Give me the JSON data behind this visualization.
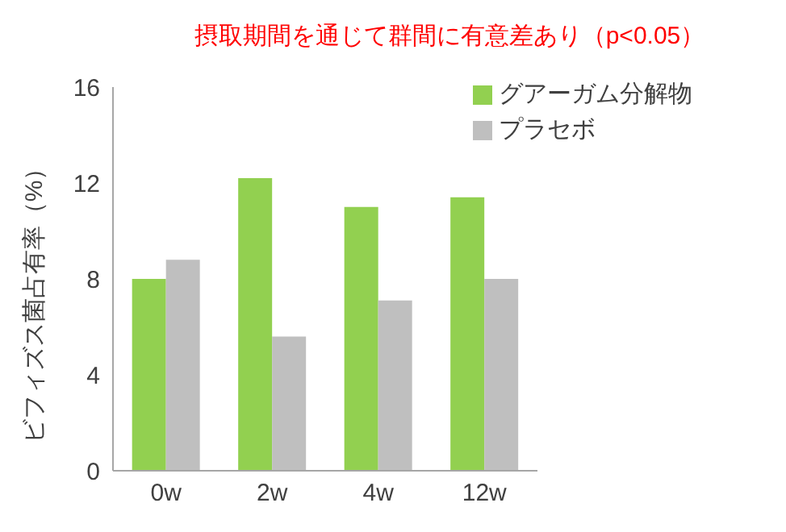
{
  "chart_data": {
    "type": "bar",
    "title": "摂取期間を通じて群間に有意差あり（p<0.05）",
    "ylabel": "ビフィズス菌占有率（%）",
    "categories": [
      "0w",
      "2w",
      "4w",
      "12w"
    ],
    "series": [
      {
        "name": "グアーガム分解物",
        "color": "#92d050",
        "values": [
          8.0,
          12.2,
          11.0,
          11.4
        ]
      },
      {
        "name": "プラセボ",
        "color": "#bfbfbf",
        "values": [
          8.8,
          5.6,
          7.1,
          8.0
        ]
      }
    ],
    "ylim": [
      0,
      16
    ],
    "yticks": [
      0,
      4,
      8,
      12,
      16
    ],
    "grid": false,
    "legend": "top right"
  }
}
